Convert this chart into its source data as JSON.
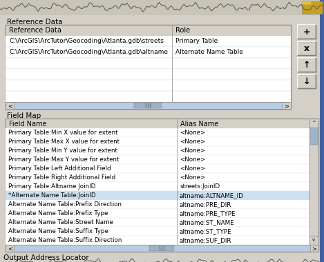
{
  "bg_color": "#d4d0c8",
  "panel_bg": "#f0ede8",
  "table_bg": "#ffffff",
  "header_bg": "#d4d0c8",
  "selected_row_bg": "#c5d5e8",
  "border_color": "#808080",
  "text_color": "#000000",
  "ref_table_header": [
    "Reference Data",
    "Role"
  ],
  "ref_table_rows": [
    [
      "C:\\ArcGIS\\ArcTutor\\Geocoding\\Atlanta.gdb\\streets",
      "Primary Table"
    ],
    [
      "C:\\ArcGIS\\ArcTutor\\Geocoding\\Atlanta.gdb\\altname",
      "Alternate Name Table"
    ]
  ],
  "field_map_header": [
    "Field Name",
    "Alias Name"
  ],
  "field_map_rows": [
    [
      "Primary Table:Min X value for extent",
      "<None>"
    ],
    [
      "Primary Table:Max X value for extent",
      "<None>"
    ],
    [
      "Primary Table:Min Y value for extent",
      "<None>"
    ],
    [
      "Primary Table:Max Y value for extent",
      "<None>"
    ],
    [
      "Primary Table:Left Additional Field",
      "<None>"
    ],
    [
      "Primary Table:Right Additional Field",
      "<None>"
    ],
    [
      "Primary Table:Altname JoinID",
      "streets:JoinID"
    ],
    [
      "*Alternate Name Table:JoinID",
      "altname:ALTNAME_ID"
    ],
    [
      "Alternate Name Table:Prefix Direction",
      "altname:PRE_DIR"
    ],
    [
      "Alternate Name Table:Prefix Type",
      "altname:PRE_TYPE"
    ],
    [
      "Alternate Name Table:Street Name",
      "altname:ST_NAME"
    ],
    [
      "Alternate Name Table:Suffix Type",
      "altname:ST_TYPE"
    ],
    [
      "Alternate Name Table:Suffix Direction",
      "altname:SUF_DIR"
    ]
  ],
  "bottom_label": "Output Address Locator",
  "scrollbar_color": "#b8cce4",
  "scrollbar_thumb": "#8899aa"
}
